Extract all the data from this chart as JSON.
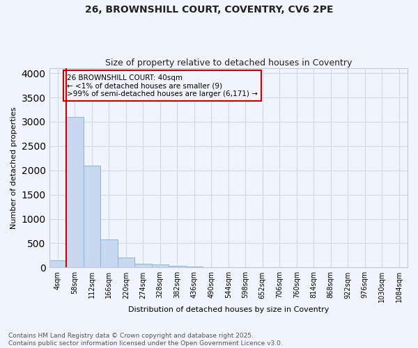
{
  "title": "26, BROWNSHILL COURT, COVENTRY, CV6 2PE",
  "subtitle": "Size of property relative to detached houses in Coventry",
  "xlabel": "Distribution of detached houses by size in Coventry",
  "ylabel": "Number of detached properties",
  "footer_line1": "Contains HM Land Registry data © Crown copyright and database right 2025.",
  "footer_line2": "Contains public sector information licensed under the Open Government Licence v3.0.",
  "bar_labels": [
    "4sqm",
    "58sqm",
    "112sqm",
    "166sqm",
    "220sqm",
    "274sqm",
    "328sqm",
    "382sqm",
    "436sqm",
    "490sqm",
    "544sqm",
    "598sqm",
    "652sqm",
    "706sqm",
    "760sqm",
    "814sqm",
    "868sqm",
    "922sqm",
    "976sqm",
    "1030sqm",
    "1084sqm"
  ],
  "bar_values": [
    150,
    3100,
    2090,
    580,
    200,
    80,
    55,
    40,
    15,
    0,
    0,
    0,
    0,
    0,
    0,
    0,
    0,
    0,
    0,
    0,
    0
  ],
  "bar_color": "#c8d8f0",
  "bar_edge_color": "#8ab4d8",
  "grid_color": "#d0d8e8",
  "bg_color": "#f0f4fc",
  "plot_bg_color": "#f0f4fc",
  "annotation_text": "26 BROWNSHILL COURT: 40sqm\n← <1% of detached houses are smaller (9)\n>99% of semi-detached houses are larger (6,171) →",
  "ylim": [
    0,
    4100
  ],
  "vline_color": "#cc0000",
  "annot_box_color": "#cc0000",
  "title_fontsize": 10,
  "subtitle_fontsize": 9,
  "ylabel_fontsize": 8,
  "xlabel_fontsize": 8,
  "tick_fontsize": 7,
  "footer_fontsize": 6.5
}
